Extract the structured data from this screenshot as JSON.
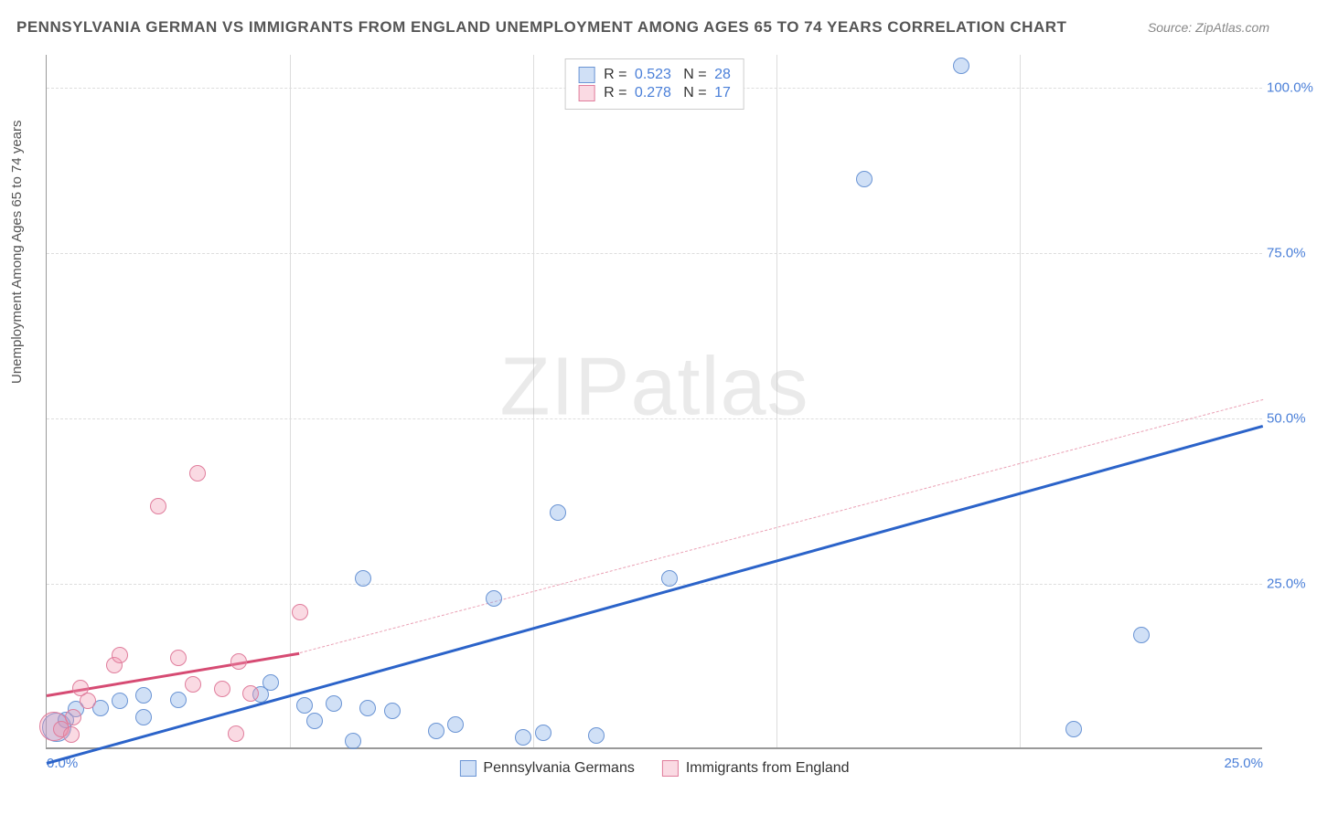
{
  "header": {
    "title": "PENNSYLVANIA GERMAN VS IMMIGRANTS FROM ENGLAND UNEMPLOYMENT AMONG AGES 65 TO 74 YEARS CORRELATION CHART",
    "source": "Source: ZipAtlas.com"
  },
  "watermark": {
    "prefix": "ZIP",
    "suffix": "atlas"
  },
  "chart": {
    "type": "scatter",
    "background_color": "#ffffff",
    "grid_color": "#dddddd",
    "axis_color": "#999999",
    "y_axis_label": "Unemployment Among Ages 65 to 74 years",
    "label_fontsize": 15,
    "tick_color": "#4a7fd8",
    "xlim": [
      0,
      25
    ],
    "ylim": [
      0,
      105
    ],
    "y_ticks": [
      {
        "v": 25,
        "label": "25.0%"
      },
      {
        "v": 50,
        "label": "50.0%"
      },
      {
        "v": 75,
        "label": "75.0%"
      },
      {
        "v": 100,
        "label": "100.0%"
      }
    ],
    "x_ticks": [
      {
        "v": 0,
        "label": "0.0%"
      },
      {
        "v": 25,
        "label": "25.0%"
      }
    ],
    "x_minor_grid": [
      5,
      10,
      15,
      20
    ],
    "series": [
      {
        "name": "Pennsylvania Germans",
        "fill": "rgba(120,165,230,0.35)",
        "stroke": "#6a94d4",
        "marker_radius": 9,
        "R": "0.523",
        "N": "28",
        "trend": {
          "x1": 0,
          "y1": -2,
          "x2": 25,
          "y2": 49,
          "width": 3,
          "dash": "solid",
          "color": "#2b63c9"
        },
        "trend_ext": null,
        "points": [
          {
            "x": 0.2,
            "y": 3.0,
            "r": 16
          },
          {
            "x": 0.4,
            "y": 4.2
          },
          {
            "x": 0.6,
            "y": 5.8
          },
          {
            "x": 1.1,
            "y": 6.0
          },
          {
            "x": 1.5,
            "y": 7.0
          },
          {
            "x": 2.0,
            "y": 4.5
          },
          {
            "x": 2.0,
            "y": 7.9
          },
          {
            "x": 2.7,
            "y": 7.2
          },
          {
            "x": 4.4,
            "y": 8.0
          },
          {
            "x": 4.6,
            "y": 9.8
          },
          {
            "x": 5.3,
            "y": 6.4
          },
          {
            "x": 5.5,
            "y": 4.0
          },
          {
            "x": 5.9,
            "y": 6.6
          },
          {
            "x": 6.3,
            "y": 1.0
          },
          {
            "x": 6.6,
            "y": 6.0
          },
          {
            "x": 6.5,
            "y": 25.5
          },
          {
            "x": 7.1,
            "y": 5.5
          },
          {
            "x": 8.0,
            "y": 2.5
          },
          {
            "x": 8.4,
            "y": 3.5
          },
          {
            "x": 9.2,
            "y": 22.5
          },
          {
            "x": 9.8,
            "y": 1.5
          },
          {
            "x": 10.2,
            "y": 2.2
          },
          {
            "x": 10.5,
            "y": 35.5
          },
          {
            "x": 11.3,
            "y": 1.8
          },
          {
            "x": 12.8,
            "y": 25.5
          },
          {
            "x": 16.8,
            "y": 86.0
          },
          {
            "x": 18.8,
            "y": 103.0
          },
          {
            "x": 21.1,
            "y": 2.8
          },
          {
            "x": 22.5,
            "y": 17.0
          }
        ]
      },
      {
        "name": "Immigrants from England",
        "fill": "rgba(240,150,175,0.35)",
        "stroke": "#e07d9c",
        "marker_radius": 9,
        "R": "0.278",
        "N": "17",
        "trend": {
          "x1": 0,
          "y1": 8.3,
          "x2": 5.2,
          "y2": 14.7,
          "width": 3,
          "dash": "solid",
          "color": "#d64b73"
        },
        "trend_ext": {
          "x1": 5.2,
          "y1": 14.7,
          "x2": 25,
          "y2": 53.0,
          "width": 1,
          "dash": "dashed",
          "color": "#eaa1b5"
        },
        "points": [
          {
            "x": 0.15,
            "y": 3.2,
            "r": 16
          },
          {
            "x": 0.3,
            "y": 2.7
          },
          {
            "x": 0.5,
            "y": 1.9
          },
          {
            "x": 0.55,
            "y": 4.5
          },
          {
            "x": 0.7,
            "y": 9.0
          },
          {
            "x": 0.85,
            "y": 7.1
          },
          {
            "x": 1.4,
            "y": 12.5
          },
          {
            "x": 1.5,
            "y": 14.0
          },
          {
            "x": 2.3,
            "y": 36.5
          },
          {
            "x": 2.7,
            "y": 13.6
          },
          {
            "x": 3.0,
            "y": 9.5
          },
          {
            "x": 3.1,
            "y": 41.5
          },
          {
            "x": 3.6,
            "y": 8.8
          },
          {
            "x": 3.9,
            "y": 2.1
          },
          {
            "x": 3.95,
            "y": 13.0
          },
          {
            "x": 4.2,
            "y": 8.2
          },
          {
            "x": 5.2,
            "y": 20.5
          }
        ]
      }
    ],
    "legend_top": {
      "r_label": "R =",
      "n_label": "N ="
    },
    "legend_bottom": {
      "items": [
        "Pennsylvania Germans",
        "Immigrants from England"
      ]
    }
  }
}
